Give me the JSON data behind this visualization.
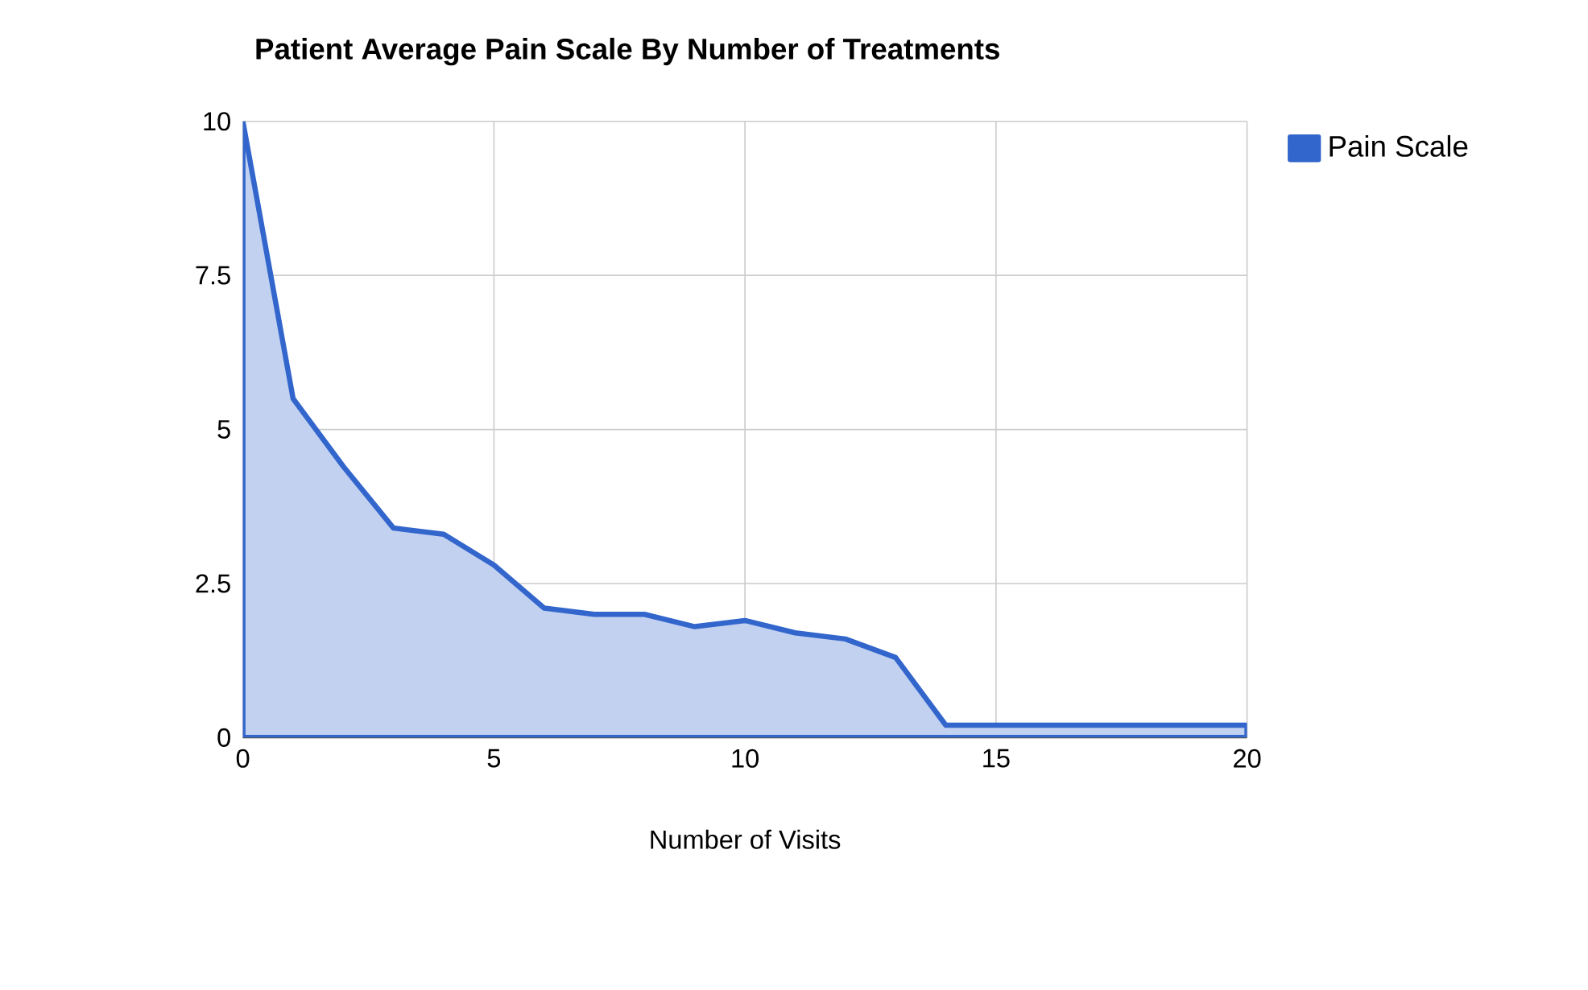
{
  "chart_data": {
    "type": "area",
    "title": "Patient Average Pain Scale By Number of Treatments",
    "xlabel": "Number of Visits",
    "x": [
      0,
      1,
      2,
      3,
      4,
      5,
      6,
      7,
      8,
      9,
      10,
      11,
      12,
      13,
      14,
      15,
      16,
      17,
      18,
      19,
      20
    ],
    "series": [
      {
        "name": "Pain Scale",
        "color": "#3366cc",
        "values": [
          10,
          5.5,
          4.4,
          3.4,
          3.3,
          2.8,
          2.1,
          2.0,
          2.0,
          1.8,
          1.9,
          1.7,
          1.6,
          1.3,
          0.2,
          0.2,
          0.2,
          0.2,
          0.2,
          0.2,
          0.2
        ]
      }
    ],
    "xlim": [
      0,
      20
    ],
    "xticks": [
      0,
      5,
      10,
      15,
      20
    ],
    "ylim": [
      0,
      10
    ],
    "yticks": [
      0,
      {
        "value": 2.5,
        "label": "2.5"
      },
      5,
      {
        "value": 7.5,
        "label": "7.5"
      },
      10
    ],
    "grid": true,
    "legend": "top right",
    "marker": "none",
    "line_style": "solid"
  }
}
